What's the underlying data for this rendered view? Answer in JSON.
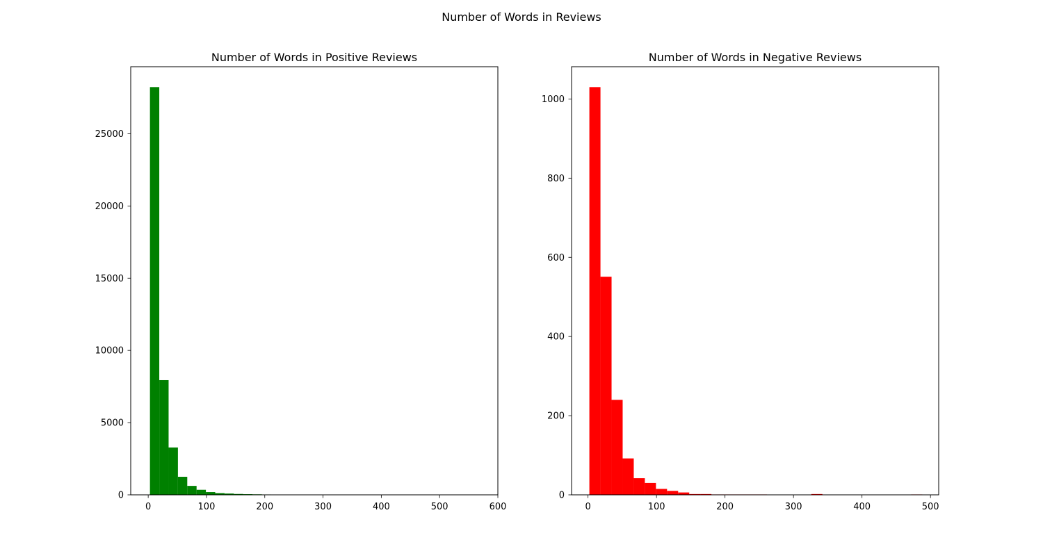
{
  "figure": {
    "suptitle": "Number of Words in Reviews"
  },
  "chart_data": [
    {
      "type": "bar",
      "title": "Number of Words in Positive Reviews",
      "xlabel": "",
      "ylabel": "",
      "color": "#008000",
      "bin_edges": [
        3,
        19,
        35,
        51,
        67,
        83,
        99,
        115,
        131,
        147,
        163,
        179,
        195,
        211,
        227,
        243,
        259,
        275,
        291,
        307,
        323,
        339,
        355,
        371,
        387,
        403,
        419,
        435,
        451,
        467,
        483,
        499,
        515,
        531,
        547,
        563
      ],
      "values": [
        28230,
        7940,
        3280,
        1250,
        620,
        350,
        190,
        120,
        90,
        60,
        45,
        35,
        25,
        20,
        12,
        8,
        6,
        5,
        4,
        3,
        3,
        2,
        2,
        1,
        1,
        1,
        1,
        1,
        1,
        1,
        1,
        1,
        1,
        1,
        1
      ],
      "xlim": [
        -30,
        600
      ],
      "ylim": [
        0,
        29640
      ],
      "xticks": [
        0,
        100,
        200,
        300,
        400,
        500,
        600
      ],
      "yticks": [
        0,
        5000,
        10000,
        15000,
        20000,
        25000
      ],
      "grid": false
    },
    {
      "type": "bar",
      "title": "Number of Words in Negative Reviews",
      "xlabel": "",
      "ylabel": "",
      "color": "#ff0000",
      "bin_edges": [
        2,
        18.2,
        34.4,
        50.6,
        66.8,
        83,
        99.2,
        115.4,
        131.6,
        147.8,
        164,
        180.2,
        196.4,
        212.6,
        228.8,
        245,
        261.2,
        277.4,
        293.6,
        309.8,
        326,
        342.2,
        358.4,
        374.6,
        390.8,
        407,
        423.2,
        439.4,
        455.6,
        471.8,
        488
      ],
      "values": [
        1030,
        551,
        240,
        92,
        42,
        30,
        15,
        10,
        6,
        2,
        2,
        1,
        1,
        1,
        1,
        1,
        0,
        0,
        0,
        0,
        2,
        0,
        0,
        0,
        0,
        0,
        0,
        0,
        0,
        1
      ],
      "xlim": [
        -24,
        512
      ],
      "ylim": [
        0,
        1081.5
      ],
      "xticks": [
        0,
        100,
        200,
        300,
        400,
        500
      ],
      "yticks": [
        0,
        200,
        400,
        600,
        800,
        1000
      ],
      "grid": false
    }
  ]
}
